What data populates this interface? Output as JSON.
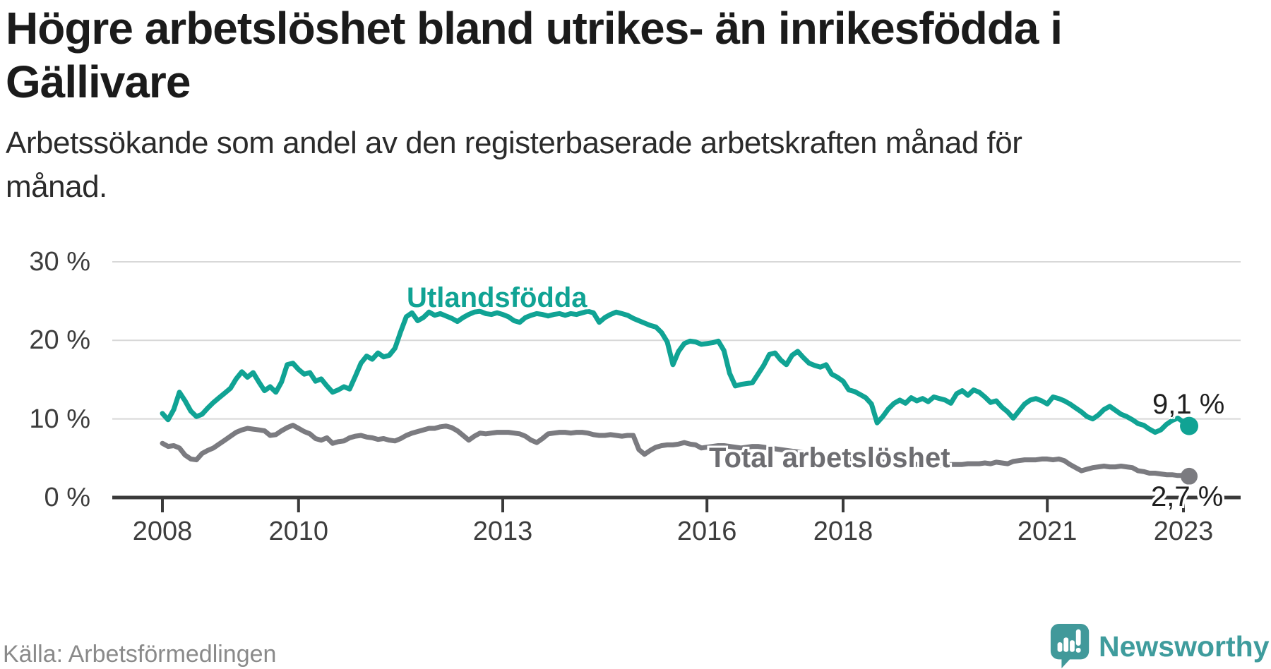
{
  "title": {
    "lines": [
      "Högre arbetslöshet bland utrikes- än inrikesfödda i",
      "Gällivare"
    ]
  },
  "subtitle": {
    "lines": [
      "Arbetssökande som andel av den registerbaserade arbetskraften månad för",
      "månad."
    ]
  },
  "source": {
    "text": "Källa: Arbetsförmedlingen"
  },
  "brand": {
    "name": "Newsworthy",
    "icon": "newsworthy-speech-bubble-chart-icon",
    "color": "#41999a"
  },
  "colors": {
    "foreign_born_line": "#10a394",
    "total_line": "#7b7b80",
    "axis": "#3a3a3a",
    "gridline": "#d8d8d8",
    "tick_text": "#3d3d3d"
  },
  "chart_data": {
    "type": "line",
    "title": "Högre arbetslöshet bland utrikes- än inrikesfödda i Gällivare",
    "subtitle": "Arbetssökande som andel av den registerbaserade arbetskraften månad för månad.",
    "xlabel": "",
    "ylabel": "",
    "x_start_year": 2008.0,
    "x_step_years": 0.0833333,
    "xlim": [
      2007.26,
      2023.84
    ],
    "ylim": [
      0,
      30
    ],
    "grid": "horizontal",
    "legend_position": "inline-labels",
    "x_tick_values": [
      2008,
      2010,
      2013,
      2016,
      2018,
      2021,
      2023
    ],
    "x_tick_labels": [
      "2008",
      "2010",
      "2013",
      "2016",
      "2018",
      "2021",
      "2023"
    ],
    "y_tick_values": [
      0,
      10,
      20,
      30
    ],
    "y_tick_labels": [
      "0 %",
      "10 %",
      "20 %",
      "30 %"
    ],
    "series": [
      {
        "name": "Utlandsfödda",
        "color": "#10a394",
        "end_label": "9,1 %",
        "end_value": 9.1,
        "values": [
          10.7,
          9.9,
          11.2,
          13.4,
          12.3,
          11.0,
          10.3,
          10.6,
          11.4,
          12.1,
          12.7,
          13.3,
          13.9,
          15.1,
          16.0,
          15.3,
          15.9,
          14.7,
          13.6,
          14.1,
          13.4,
          14.7,
          16.9,
          17.1,
          16.3,
          15.7,
          15.9,
          14.8,
          15.1,
          14.2,
          13.4,
          13.7,
          14.1,
          13.8,
          15.4,
          17.1,
          18.0,
          17.6,
          18.4,
          17.9,
          18.1,
          19.0,
          21.1,
          23.0,
          23.5,
          22.5,
          22.9,
          23.6,
          23.2,
          23.4,
          23.1,
          22.8,
          22.4,
          22.9,
          23.3,
          23.6,
          23.7,
          23.4,
          23.3,
          23.5,
          23.3,
          23.0,
          22.5,
          22.3,
          22.9,
          23.2,
          23.4,
          23.3,
          23.1,
          23.3,
          23.4,
          23.2,
          23.4,
          23.3,
          23.5,
          23.7,
          23.5,
          22.3,
          22.9,
          23.3,
          23.6,
          23.4,
          23.2,
          22.8,
          22.5,
          22.2,
          21.9,
          21.7,
          21.0,
          19.8,
          16.9,
          18.6,
          19.6,
          19.9,
          19.8,
          19.5,
          19.6,
          19.7,
          19.9,
          18.7,
          15.8,
          14.2,
          14.4,
          14.5,
          14.6,
          15.7,
          16.8,
          18.2,
          18.4,
          17.5,
          16.9,
          18.1,
          18.6,
          17.8,
          17.1,
          16.8,
          16.6,
          16.9,
          15.7,
          15.3,
          14.8,
          13.7,
          13.5,
          13.1,
          12.7,
          11.9,
          9.5,
          10.3,
          11.3,
          12.0,
          12.4,
          12.0,
          12.7,
          12.3,
          12.6,
          12.2,
          12.8,
          12.6,
          12.4,
          12.0,
          13.2,
          13.6,
          13.0,
          13.7,
          13.4,
          12.8,
          12.1,
          12.3,
          11.5,
          10.9,
          10.1,
          11.0,
          11.9,
          12.4,
          12.6,
          12.3,
          11.9,
          12.8,
          12.6,
          12.3,
          11.9,
          11.4,
          10.9,
          10.3,
          10.0,
          10.5,
          11.2,
          11.6,
          11.1,
          10.6,
          10.3,
          9.9,
          9.4,
          9.2,
          8.7,
          8.3,
          8.6,
          9.3,
          9.8,
          10.1,
          9.6,
          9.1
        ]
      },
      {
        "name": "Total arbetslöshet",
        "color": "#7b7b80",
        "end_label": "2,7 %",
        "end_value": 2.7,
        "values": [
          6.9,
          6.5,
          6.6,
          6.3,
          5.4,
          4.9,
          4.8,
          5.6,
          6.0,
          6.3,
          6.8,
          7.3,
          7.8,
          8.3,
          8.6,
          8.8,
          8.7,
          8.6,
          8.5,
          7.9,
          8.0,
          8.5,
          8.9,
          9.2,
          8.8,
          8.4,
          8.1,
          7.5,
          7.3,
          7.6,
          6.9,
          7.1,
          7.2,
          7.6,
          7.8,
          7.9,
          7.7,
          7.6,
          7.4,
          7.5,
          7.3,
          7.2,
          7.5,
          7.9,
          8.2,
          8.4,
          8.6,
          8.8,
          8.8,
          9.0,
          9.1,
          8.9,
          8.5,
          7.9,
          7.3,
          7.8,
          8.2,
          8.1,
          8.2,
          8.3,
          8.3,
          8.3,
          8.2,
          8.1,
          7.8,
          7.3,
          7.0,
          7.5,
          8.1,
          8.2,
          8.3,
          8.3,
          8.2,
          8.3,
          8.3,
          8.2,
          8.0,
          7.9,
          7.9,
          8.0,
          7.9,
          7.8,
          7.9,
          7.9,
          6.1,
          5.5,
          6.0,
          6.4,
          6.6,
          6.7,
          6.7,
          6.8,
          7.0,
          6.8,
          6.7,
          6.3,
          6.4,
          6.5,
          6.6,
          6.6,
          6.5,
          6.4,
          6.3,
          6.4,
          6.5,
          6.5,
          6.4,
          6.3,
          6.2,
          6.1,
          6.0,
          5.9,
          5.8,
          5.7,
          5.6,
          5.6,
          5.5,
          5.4,
          5.3,
          5.2,
          5.1,
          5.0,
          4.9,
          4.8,
          4.7,
          4.6,
          4.5,
          4.5,
          4.4,
          4.4,
          4.3,
          4.3,
          4.3,
          4.2,
          4.2,
          4.2,
          4.1,
          4.1,
          4.1,
          4.2,
          4.2,
          4.2,
          4.3,
          4.3,
          4.3,
          4.4,
          4.3,
          4.5,
          4.4,
          4.3,
          4.6,
          4.7,
          4.8,
          4.8,
          4.8,
          4.9,
          4.9,
          4.8,
          4.9,
          4.7,
          4.2,
          3.8,
          3.4,
          3.6,
          3.8,
          3.9,
          4.0,
          3.9,
          3.9,
          4.0,
          3.9,
          3.8,
          3.4,
          3.3,
          3.1,
          3.1,
          3.0,
          2.9,
          2.9,
          2.8,
          2.8,
          2.7
        ]
      }
    ]
  }
}
